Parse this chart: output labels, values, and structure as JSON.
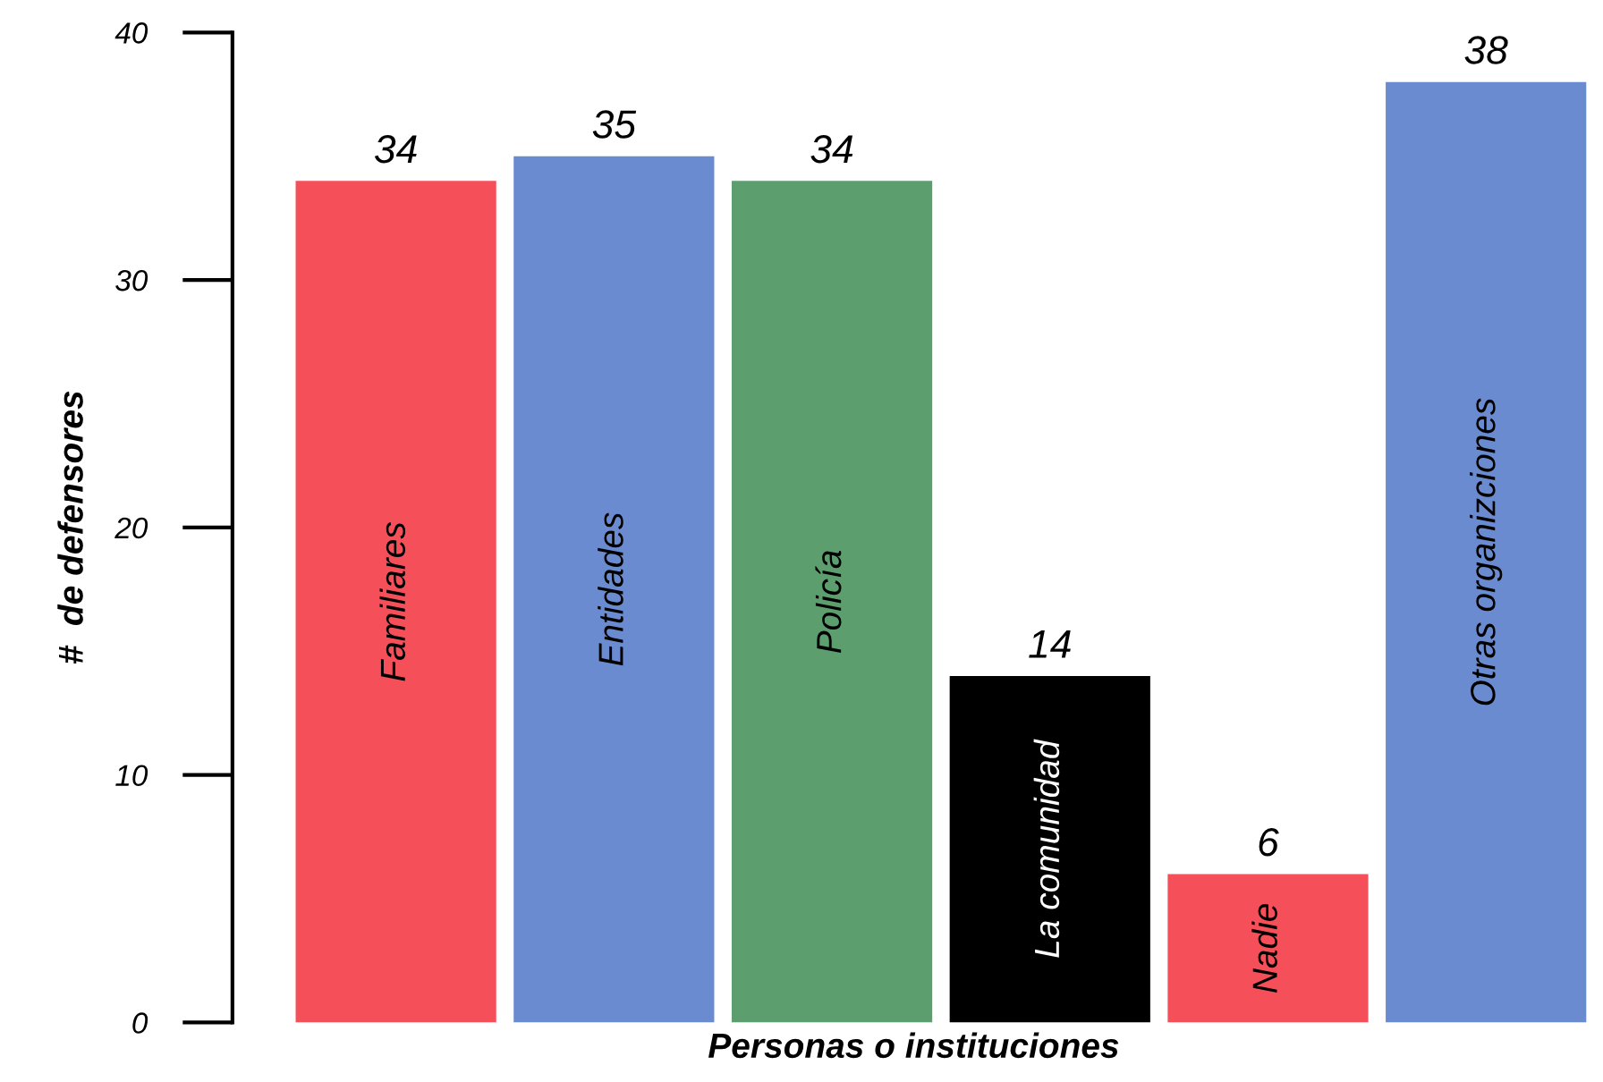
{
  "chart_data": {
    "type": "bar",
    "xlabel": "Personas o instituciones",
    "ylabel": "#  de defensores",
    "categories": [
      "Familiares",
      "Entidades",
      "Policía",
      "La comunidad",
      "Nadie",
      "Otras organizciones"
    ],
    "values": [
      34,
      35,
      34,
      14,
      6,
      38
    ],
    "colors": [
      "#f5505a",
      "#6a8bd0",
      "#5c9e6d",
      "#000000",
      "#f5505a",
      "#6a8bd0"
    ],
    "ylim": [
      0,
      40
    ],
    "yticks": [
      0,
      10,
      20,
      30,
      40
    ],
    "data_labels": true,
    "grid": false,
    "legend": false
  }
}
